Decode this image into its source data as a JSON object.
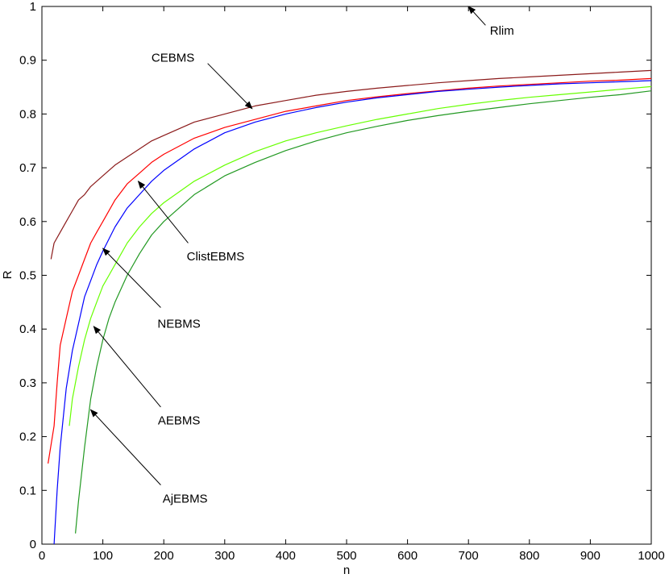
{
  "chart_data": {
    "type": "line",
    "title": "",
    "xlabel": "n",
    "ylabel": "R",
    "xlim": [
      0,
      1000
    ],
    "ylim": [
      0,
      1
    ],
    "grid": false,
    "legend": "none",
    "x_ticks": [
      0,
      100,
      200,
      300,
      400,
      500,
      600,
      700,
      800,
      900,
      1000
    ],
    "y_ticks": [
      0,
      0.1,
      0.2,
      0.3,
      0.4,
      0.5,
      0.6,
      0.7,
      0.8,
      0.9,
      1
    ],
    "series": [
      {
        "name": "CEBMS",
        "color": "#8b1a1a",
        "x": [
          15,
          20,
          30,
          40,
          50,
          60,
          70,
          80,
          90,
          100,
          120,
          140,
          160,
          180,
          200,
          250,
          300,
          350,
          400,
          450,
          500,
          550,
          600,
          650,
          700,
          750,
          800,
          850,
          900,
          950,
          1000
        ],
        "y": [
          0.53,
          0.56,
          0.58,
          0.6,
          0.62,
          0.64,
          0.65,
          0.665,
          0.675,
          0.685,
          0.705,
          0.72,
          0.735,
          0.75,
          0.76,
          0.785,
          0.8,
          0.815,
          0.825,
          0.835,
          0.842,
          0.848,
          0.853,
          0.858,
          0.862,
          0.866,
          0.869,
          0.872,
          0.875,
          0.878,
          0.881
        ]
      },
      {
        "name": "ClistEBMS",
        "color": "#ff0000",
        "x": [
          10,
          20,
          25,
          30,
          40,
          50,
          60,
          70,
          80,
          90,
          100,
          120,
          140,
          160,
          180,
          200,
          250,
          300,
          350,
          400,
          450,
          500,
          550,
          600,
          650,
          700,
          750,
          800,
          850,
          900,
          950,
          1000
        ],
        "y": [
          0.15,
          0.22,
          0.3,
          0.37,
          0.42,
          0.47,
          0.5,
          0.53,
          0.56,
          0.58,
          0.6,
          0.64,
          0.67,
          0.69,
          0.71,
          0.725,
          0.755,
          0.775,
          0.79,
          0.805,
          0.815,
          0.825,
          0.832,
          0.838,
          0.843,
          0.848,
          0.852,
          0.855,
          0.858,
          0.861,
          0.863,
          0.866
        ]
      },
      {
        "name": "NEBMS",
        "color": "#0000ff",
        "x": [
          20,
          25,
          30,
          40,
          50,
          60,
          70,
          80,
          90,
          100,
          120,
          140,
          160,
          180,
          200,
          250,
          300,
          350,
          400,
          450,
          500,
          550,
          600,
          650,
          700,
          750,
          800,
          850,
          900,
          950,
          1000
        ],
        "y": [
          0.0,
          0.1,
          0.18,
          0.29,
          0.36,
          0.41,
          0.46,
          0.49,
          0.52,
          0.545,
          0.59,
          0.625,
          0.65,
          0.675,
          0.695,
          0.735,
          0.765,
          0.785,
          0.8,
          0.812,
          0.822,
          0.83,
          0.836,
          0.842,
          0.846,
          0.85,
          0.853,
          0.856,
          0.858,
          0.86,
          0.862
        ]
      },
      {
        "name": "AEBMS",
        "color": "#66ff00",
        "x": [
          45,
          50,
          60,
          70,
          80,
          90,
          100,
          110,
          120,
          140,
          160,
          180,
          200,
          250,
          300,
          350,
          400,
          450,
          500,
          550,
          600,
          650,
          700,
          750,
          800,
          850,
          900,
          950,
          1000
        ],
        "y": [
          0.22,
          0.27,
          0.33,
          0.38,
          0.42,
          0.45,
          0.48,
          0.5,
          0.52,
          0.56,
          0.59,
          0.615,
          0.635,
          0.675,
          0.705,
          0.73,
          0.75,
          0.765,
          0.778,
          0.79,
          0.8,
          0.81,
          0.818,
          0.825,
          0.831,
          0.836,
          0.841,
          0.846,
          0.851
        ]
      },
      {
        "name": "AjEBMS",
        "color": "#229922",
        "x": [
          55,
          60,
          70,
          80,
          90,
          100,
          110,
          120,
          140,
          160,
          180,
          200,
          250,
          300,
          350,
          400,
          450,
          500,
          550,
          600,
          650,
          700,
          750,
          800,
          850,
          900,
          950,
          1000
        ],
        "y": [
          0.02,
          0.08,
          0.18,
          0.27,
          0.33,
          0.38,
          0.42,
          0.45,
          0.5,
          0.54,
          0.575,
          0.6,
          0.65,
          0.685,
          0.71,
          0.732,
          0.75,
          0.765,
          0.777,
          0.788,
          0.797,
          0.805,
          0.812,
          0.819,
          0.825,
          0.831,
          0.836,
          0.843
        ]
      }
    ],
    "annotations": [
      {
        "text": "CEBMS",
        "color": "#000000",
        "text_at": [
          215,
          0.905
        ],
        "arrow_from": [
          272,
          0.894
        ],
        "arrow_to": [
          345,
          0.81
        ]
      },
      {
        "text": "ClistEBMS",
        "color": "#000000",
        "text_at": [
          285,
          0.535
        ],
        "arrow_from": [
          240,
          0.56
        ],
        "arrow_to": [
          158,
          0.675
        ]
      },
      {
        "text": "NEBMS",
        "color": "#000000",
        "text_at": [
          225,
          0.41
        ],
        "arrow_from": [
          195,
          0.44
        ],
        "arrow_to": [
          100,
          0.55
        ]
      },
      {
        "text": "AEBMS",
        "color": "#000000",
        "text_at": [
          225,
          0.23
        ],
        "arrow_from": [
          195,
          0.255
        ],
        "arrow_to": [
          85,
          0.405
        ]
      },
      {
        "text": "AjEBMS",
        "color": "#000000",
        "text_at": [
          235,
          0.085
        ],
        "arrow_from": [
          195,
          0.11
        ],
        "arrow_to": [
          80,
          0.25
        ]
      },
      {
        "text": "Rlim",
        "color": "#000000",
        "text_at": [
          755,
          0.955
        ],
        "arrow_from": [
          728,
          0.965
        ],
        "arrow_to": [
          700,
          1.0
        ]
      }
    ]
  }
}
